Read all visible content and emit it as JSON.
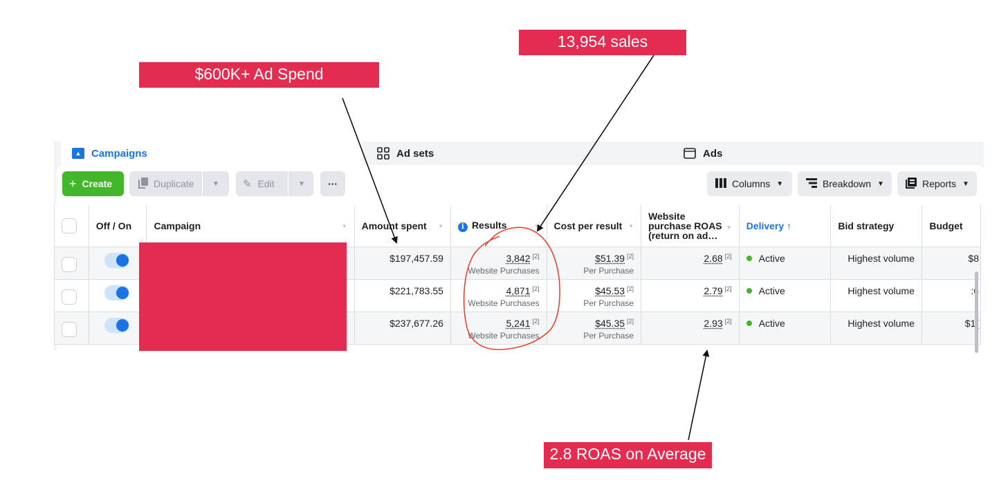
{
  "callouts": {
    "ad_spend": "$600K+ Ad Spend",
    "sales": "13,954 sales",
    "roas": "2.8 ROAS on Average"
  },
  "tabs": [
    {
      "label": "Campaigns",
      "icon": "campaigns-icon",
      "active": true
    },
    {
      "label": "Ad sets",
      "icon": "ad-sets-icon",
      "active": false
    },
    {
      "label": "Ads",
      "icon": "ads-icon",
      "active": false
    }
  ],
  "toolbar": {
    "create": "Create",
    "duplicate": "Duplicate",
    "edit": "Edit",
    "more": "···",
    "columns": "Columns",
    "breakdown": "Breakdown",
    "reports": "Reports"
  },
  "columns": {
    "off_on": "Off / On",
    "campaign": "Campaign",
    "amount_spent": "Amount spent",
    "results": "Results",
    "cost_per_result": "Cost per result",
    "roas_line1": "Website",
    "roas_line2": "purchase ROAS",
    "roas_line3": "(return on ad…",
    "delivery": "Delivery",
    "bid_strategy": "Bid strategy",
    "budget": "Budget"
  },
  "rows": [
    {
      "amount_spent": "$197,457.59",
      "results": "3,842",
      "results_note": "[2]",
      "results_type": "Website Purchases",
      "cost": "$51.39",
      "cost_note": "[2]",
      "cost_type": "Per Purchase",
      "roas": "2.68",
      "roas_note": "[2]",
      "delivery": "Active",
      "bid": "Highest volume",
      "budget": "$8"
    },
    {
      "amount_spent": "$221,783.55",
      "results": "4,871",
      "results_note": "[2]",
      "results_type": "Website Purchases",
      "cost": "$45.53",
      "cost_note": "[2]",
      "cost_type": "Per Purchase",
      "roas": "2.79",
      "roas_note": "[2]",
      "delivery": "Active",
      "bid": "Highest volume",
      "budget": ":6"
    },
    {
      "amount_spent": "$237,677.26",
      "results": "5,241",
      "results_note": "[2]",
      "results_type": "Website Purchases",
      "cost": "$45.35",
      "cost_note": "[2]",
      "cost_type": "Per Purchase",
      "roas": "2.93",
      "roas_note": "[2]",
      "delivery": "Active",
      "bid": "Highest volume",
      "budget": "$1("
    }
  ],
  "colors": {
    "callout": "#e32c4f",
    "accent": "#1b74e4",
    "create": "#42b72a",
    "annotation_circle": "#e8442e"
  }
}
